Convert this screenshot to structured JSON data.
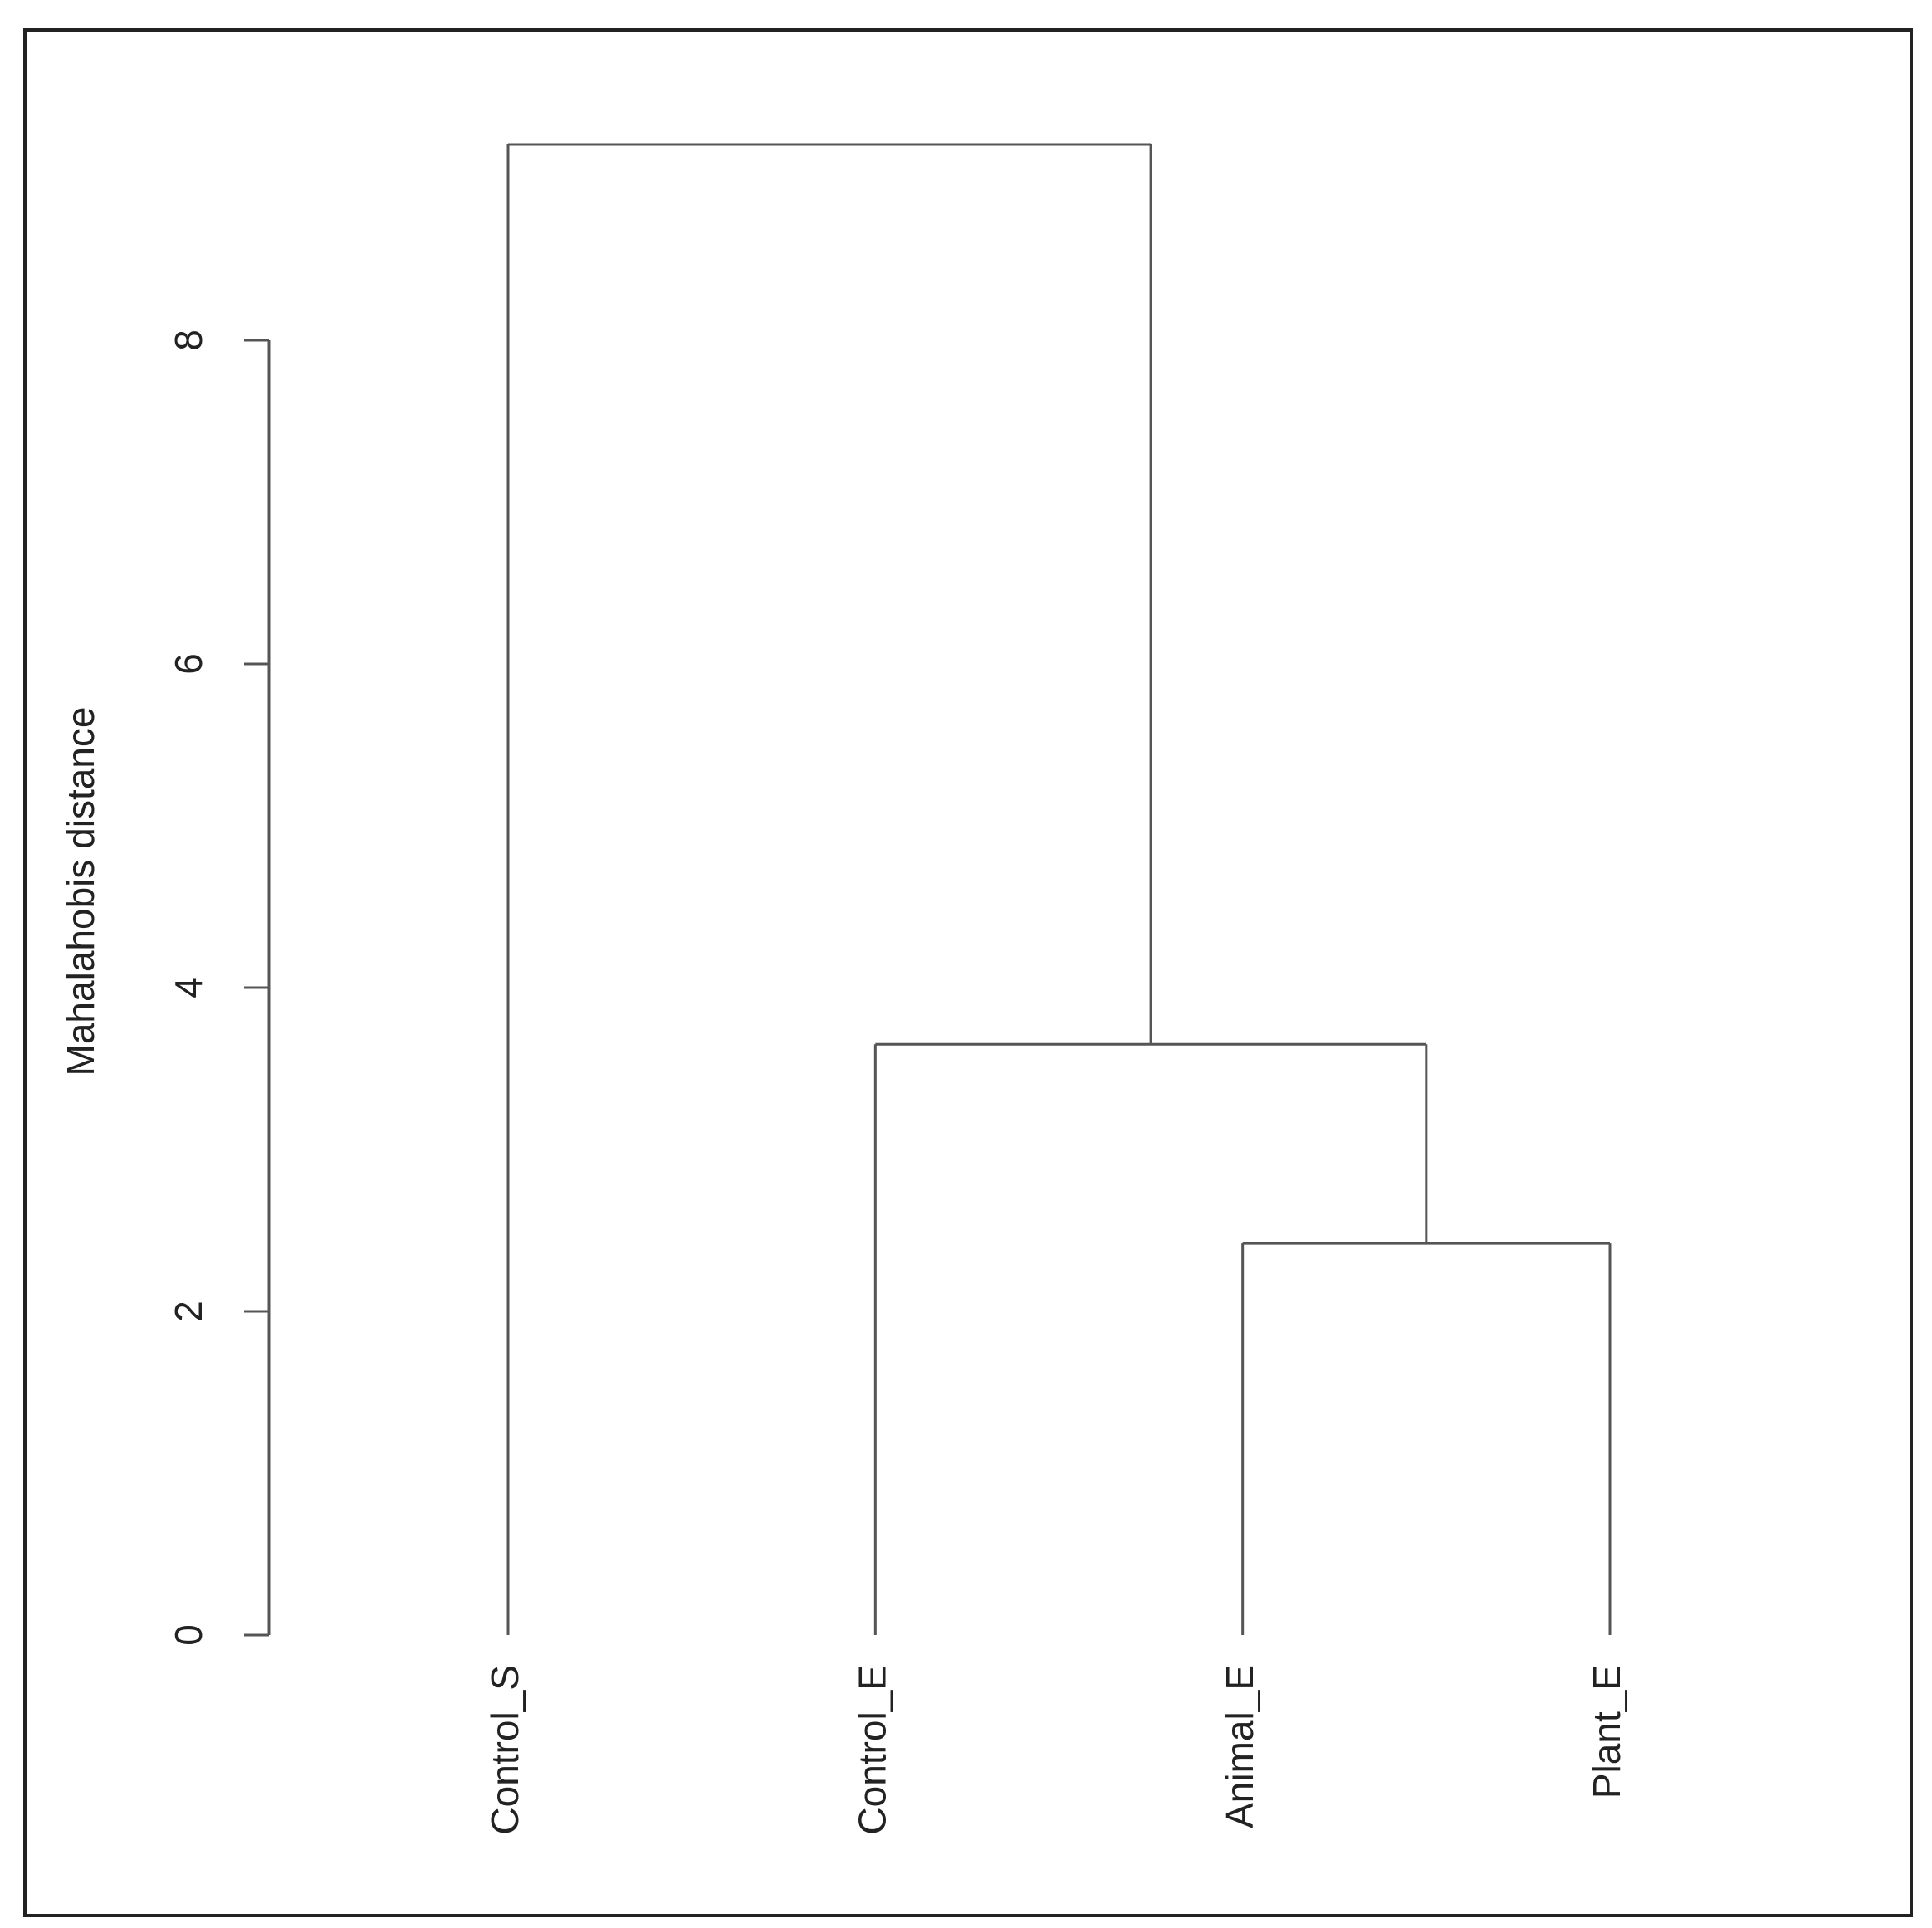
{
  "chart_data": {
    "type": "dendrogram",
    "ylabel": "Mahalahobis distance",
    "categories": [
      "Control_S",
      "Control_E",
      "Animal_E",
      "Plant_E"
    ],
    "merges": [
      {
        "leaves": [
          2,
          3
        ],
        "height": 2.42
      },
      {
        "leaves": [
          1,
          2,
          3
        ],
        "height": 3.65
      },
      {
        "leaves": [
          0,
          1,
          2,
          3
        ],
        "height": 9.21
      }
    ],
    "ylim": [
      0,
      8
    ],
    "yticks": [
      0,
      2,
      4,
      6,
      8
    ],
    "color": "#555555"
  }
}
